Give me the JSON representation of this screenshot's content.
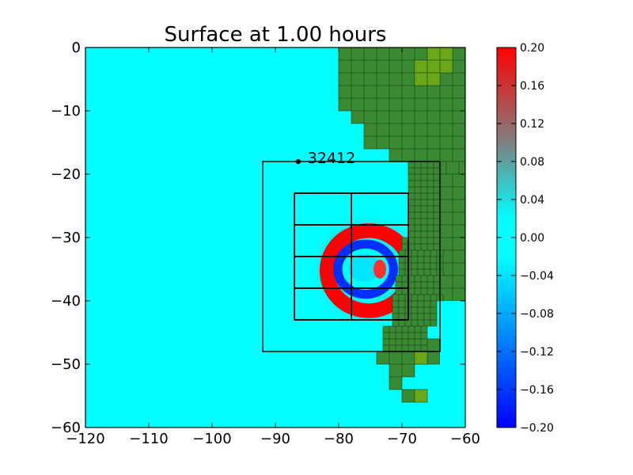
{
  "chart_data": {
    "type": "heatmap",
    "title": "Surface at 1.00 hours",
    "xlabel": "",
    "ylabel": "",
    "xlim": [
      -120,
      -60
    ],
    "ylim": [
      -60,
      0
    ],
    "xticks": [
      -120,
      -110,
      -100,
      -90,
      -80,
      -70,
      -60
    ],
    "yticks": [
      0,
      -10,
      -20,
      -30,
      -40,
      -50,
      -60
    ],
    "xtick_labels": [
      "−120",
      "−110",
      "−100",
      "−90",
      "−80",
      "−70",
      "−60"
    ],
    "ytick_labels": [
      "0",
      "−10",
      "−20",
      "−30",
      "−40",
      "−50",
      "−60"
    ],
    "colorbar": {
      "range": [
        -0.2,
        0.2
      ],
      "ticks": [
        0.2,
        0.16,
        0.12,
        0.08,
        0.04,
        0.0,
        -0.04,
        -0.08,
        -0.12,
        -0.16,
        -0.2
      ],
      "tick_labels": [
        "0.20",
        "0.16",
        "0.12",
        "0.08",
        "0.04",
        "0.00",
        "−0.04",
        "−0.08",
        "−0.12",
        "−0.16",
        "−0.20"
      ],
      "colors": [
        "#0000ff",
        "#00ffff",
        "#808080",
        "#ff0000"
      ]
    },
    "gauge": {
      "label": "32412",
      "x": -86.4,
      "y": -18.0
    },
    "refinement_boxes": [
      {
        "x0": -92,
        "x1": -64,
        "y0": -48,
        "y1": -18
      },
      {
        "x0": -87,
        "x1": -69,
        "y0": -43,
        "y1": -23
      }
    ],
    "inner_grid": {
      "xs": [
        -87,
        -78,
        -69
      ],
      "ys": [
        -23,
        -28,
        -33,
        -38,
        -43
      ]
    },
    "wave": {
      "center": [
        -75.5,
        -35.0
      ],
      "radius": 5.5
    },
    "colors": {
      "water": "#00ffff",
      "land": "#3a8a33",
      "land_high": "#6aa819",
      "grid": "#000000"
    }
  }
}
